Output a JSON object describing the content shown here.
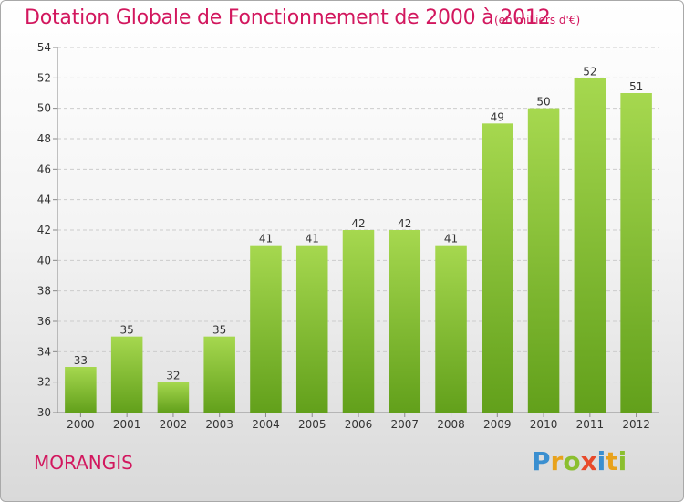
{
  "header": {
    "title": "Dotation Globale de Fonctionnement de 2000 à 2012",
    "unit": "(en milliers d'€)"
  },
  "footer": {
    "commune": "MORANGIS",
    "brand": "Proxiti",
    "brand_letters": [
      {
        "char": "P",
        "color": "#3a8fd0"
      },
      {
        "char": "r",
        "color": "#e8a21c"
      },
      {
        "char": "o",
        "color": "#8bbf2f"
      },
      {
        "char": "x",
        "color": "#e84a2b"
      },
      {
        "char": "i",
        "color": "#3a8fd0"
      },
      {
        "char": "t",
        "color": "#e8a21c"
      },
      {
        "char": "i",
        "color": "#8bbf2f"
      }
    ]
  },
  "colors": {
    "accent": "#d2175e",
    "bar_light": "#a6d84f",
    "bar_dark": "#62a01b",
    "grid": "#cccccc"
  },
  "chart_data": {
    "type": "bar",
    "title": "Dotation Globale de Fonctionnement de 2000 à 2012",
    "subtitle": "(en milliers d'€)",
    "xlabel": "",
    "ylabel": "",
    "categories": [
      "2000",
      "2001",
      "2002",
      "2003",
      "2004",
      "2005",
      "2006",
      "2007",
      "2008",
      "2009",
      "2010",
      "2011",
      "2012"
    ],
    "values": [
      33,
      35,
      32,
      35,
      41,
      41,
      42,
      42,
      41,
      49,
      50,
      52,
      51
    ],
    "ylim": [
      30,
      54
    ],
    "yticks": [
      30,
      32,
      34,
      36,
      38,
      40,
      42,
      44,
      46,
      48,
      50,
      52,
      54
    ],
    "grid": true
  }
}
